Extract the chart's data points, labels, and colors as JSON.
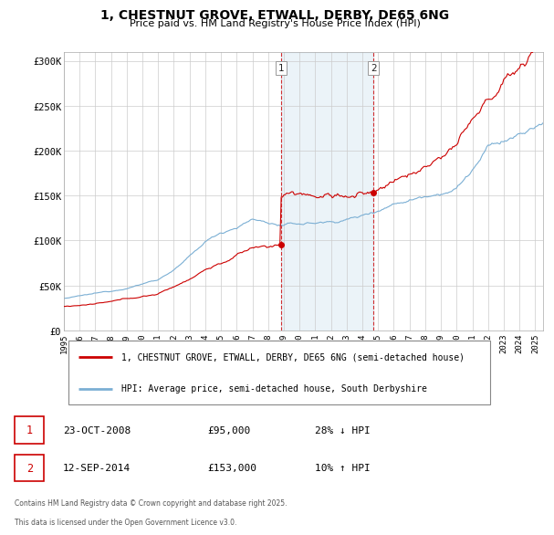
{
  "title_line1": "1, CHESTNUT GROVE, ETWALL, DERBY, DE65 6NG",
  "title_line2": "Price paid vs. HM Land Registry's House Price Index (HPI)",
  "ylabel_ticks": [
    "£0",
    "£50K",
    "£100K",
    "£150K",
    "£200K",
    "£250K",
    "£300K"
  ],
  "ytick_values": [
    0,
    50000,
    100000,
    150000,
    200000,
    250000,
    300000
  ],
  "ylim": [
    0,
    310000
  ],
  "xlim_start": 1995.0,
  "xlim_end": 2025.5,
  "sale1_date": 2008.81,
  "sale1_price": 95000,
  "sale2_date": 2014.7,
  "sale2_price": 153000,
  "shade_start": 2008.81,
  "shade_end": 2014.7,
  "property_color": "#cc0000",
  "hpi_color": "#7bafd4",
  "grid_color": "#cccccc",
  "legend_label1": "1, CHESTNUT GROVE, ETWALL, DERBY, DE65 6NG (semi-detached house)",
  "legend_label2": "HPI: Average price, semi-detached house, South Derbyshire",
  "table_row1": [
    "1",
    "23-OCT-2008",
    "£95,000",
    "28% ↓ HPI"
  ],
  "table_row2": [
    "2",
    "12-SEP-2014",
    "£153,000",
    "10% ↑ HPI"
  ],
  "footnote": "Contains HM Land Registry data © Crown copyright and database right 2025.\nThis data is licensed under the Open Government Licence v3.0."
}
